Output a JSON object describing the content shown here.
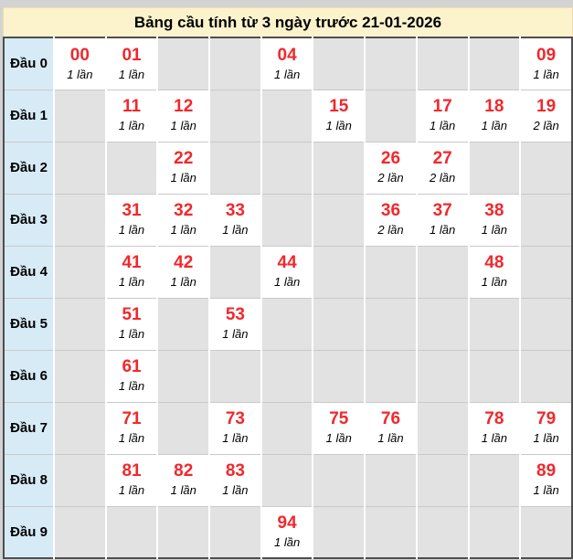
{
  "title": "Bảng cầu tính từ 3 ngày trước 21-01-2026",
  "colors": {
    "page_bg": "#d3d3d3",
    "title_bg": "#fcf3cd",
    "row_header_bg": "#d7ebf6",
    "empty_cell_bg": "#e2e2e2",
    "filled_cell_bg": "#ffffff",
    "number_color": "#f1282c",
    "table_border": "#4e4e4e"
  },
  "table": {
    "rows": [
      {
        "label": "Đầu 0",
        "cells": [
          {
            "number": "00",
            "count": "1 lần"
          },
          {
            "number": "01",
            "count": "1 lần"
          },
          null,
          null,
          {
            "number": "04",
            "count": "1 lần"
          },
          null,
          null,
          null,
          null,
          {
            "number": "09",
            "count": "1 lần"
          }
        ]
      },
      {
        "label": "Đầu 1",
        "cells": [
          null,
          {
            "number": "11",
            "count": "1 lần"
          },
          {
            "number": "12",
            "count": "1 lần"
          },
          null,
          null,
          {
            "number": "15",
            "count": "1 lần"
          },
          null,
          {
            "number": "17",
            "count": "1 lần"
          },
          {
            "number": "18",
            "count": "1 lần"
          },
          {
            "number": "19",
            "count": "2 lần"
          }
        ]
      },
      {
        "label": "Đầu 2",
        "cells": [
          null,
          null,
          {
            "number": "22",
            "count": "1 lần"
          },
          null,
          null,
          null,
          {
            "number": "26",
            "count": "2 lần"
          },
          {
            "number": "27",
            "count": "2 lần"
          },
          null,
          null
        ]
      },
      {
        "label": "Đầu 3",
        "cells": [
          null,
          {
            "number": "31",
            "count": "1 lần"
          },
          {
            "number": "32",
            "count": "1 lần"
          },
          {
            "number": "33",
            "count": "1 lần"
          },
          null,
          null,
          {
            "number": "36",
            "count": "2 lần"
          },
          {
            "number": "37",
            "count": "1 lần"
          },
          {
            "number": "38",
            "count": "1 lần"
          },
          null
        ]
      },
      {
        "label": "Đầu 4",
        "cells": [
          null,
          {
            "number": "41",
            "count": "1 lần"
          },
          {
            "number": "42",
            "count": "1 lần"
          },
          null,
          {
            "number": "44",
            "count": "1 lần"
          },
          null,
          null,
          null,
          {
            "number": "48",
            "count": "1 lần"
          },
          null
        ]
      },
      {
        "label": "Đầu 5",
        "cells": [
          null,
          {
            "number": "51",
            "count": "1 lần"
          },
          null,
          {
            "number": "53",
            "count": "1 lần"
          },
          null,
          null,
          null,
          null,
          null,
          null
        ]
      },
      {
        "label": "Đầu 6",
        "cells": [
          null,
          {
            "number": "61",
            "count": "1 lần"
          },
          null,
          null,
          null,
          null,
          null,
          null,
          null,
          null
        ]
      },
      {
        "label": "Đầu 7",
        "cells": [
          null,
          {
            "number": "71",
            "count": "1 lần"
          },
          null,
          {
            "number": "73",
            "count": "1 lần"
          },
          null,
          {
            "number": "75",
            "count": "1 lần"
          },
          {
            "number": "76",
            "count": "1 lần"
          },
          null,
          {
            "number": "78",
            "count": "1 lần"
          },
          {
            "number": "79",
            "count": "1 lần"
          }
        ]
      },
      {
        "label": "Đầu 8",
        "cells": [
          null,
          {
            "number": "81",
            "count": "1 lần"
          },
          {
            "number": "82",
            "count": "1 lần"
          },
          {
            "number": "83",
            "count": "1 lần"
          },
          null,
          null,
          null,
          null,
          null,
          {
            "number": "89",
            "count": "1 lần"
          }
        ]
      },
      {
        "label": "Đầu 9",
        "cells": [
          null,
          null,
          null,
          null,
          {
            "number": "94",
            "count": "1 lần"
          },
          null,
          null,
          null,
          null,
          null
        ]
      }
    ]
  }
}
